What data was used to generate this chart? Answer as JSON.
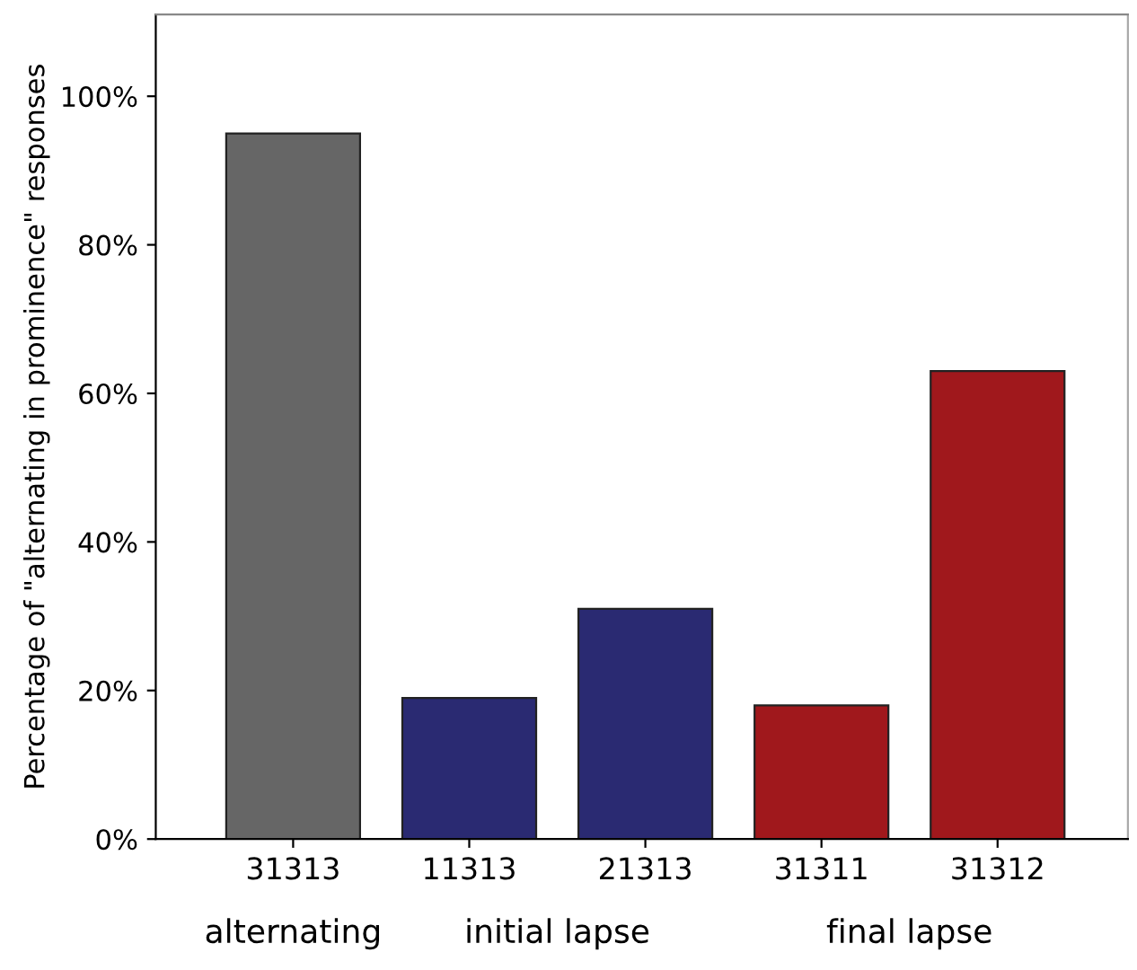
{
  "chart_data": {
    "type": "bar",
    "ylabel": "Percentage of \"alternating in prominence\" responses",
    "categories": [
      "31313",
      "11313",
      "21313",
      "31311",
      "31312"
    ],
    "values": [
      95,
      19,
      31,
      18,
      63
    ],
    "colors": [
      "#666666",
      "#2a2a72",
      "#2a2a72",
      "#a0181c",
      "#a0181c"
    ],
    "ylim": [
      0,
      111
    ],
    "yticks": [
      {
        "value": 0,
        "label": "0%"
      },
      {
        "value": 20,
        "label": "20%"
      },
      {
        "value": 40,
        "label": "40%"
      },
      {
        "value": 60,
        "label": "60%"
      },
      {
        "value": 80,
        "label": "80%"
      },
      {
        "value": 100,
        "label": "100%"
      }
    ],
    "annotations": [
      "alternating",
      "initial lapse",
      "final lapse"
    ],
    "grid": false
  }
}
